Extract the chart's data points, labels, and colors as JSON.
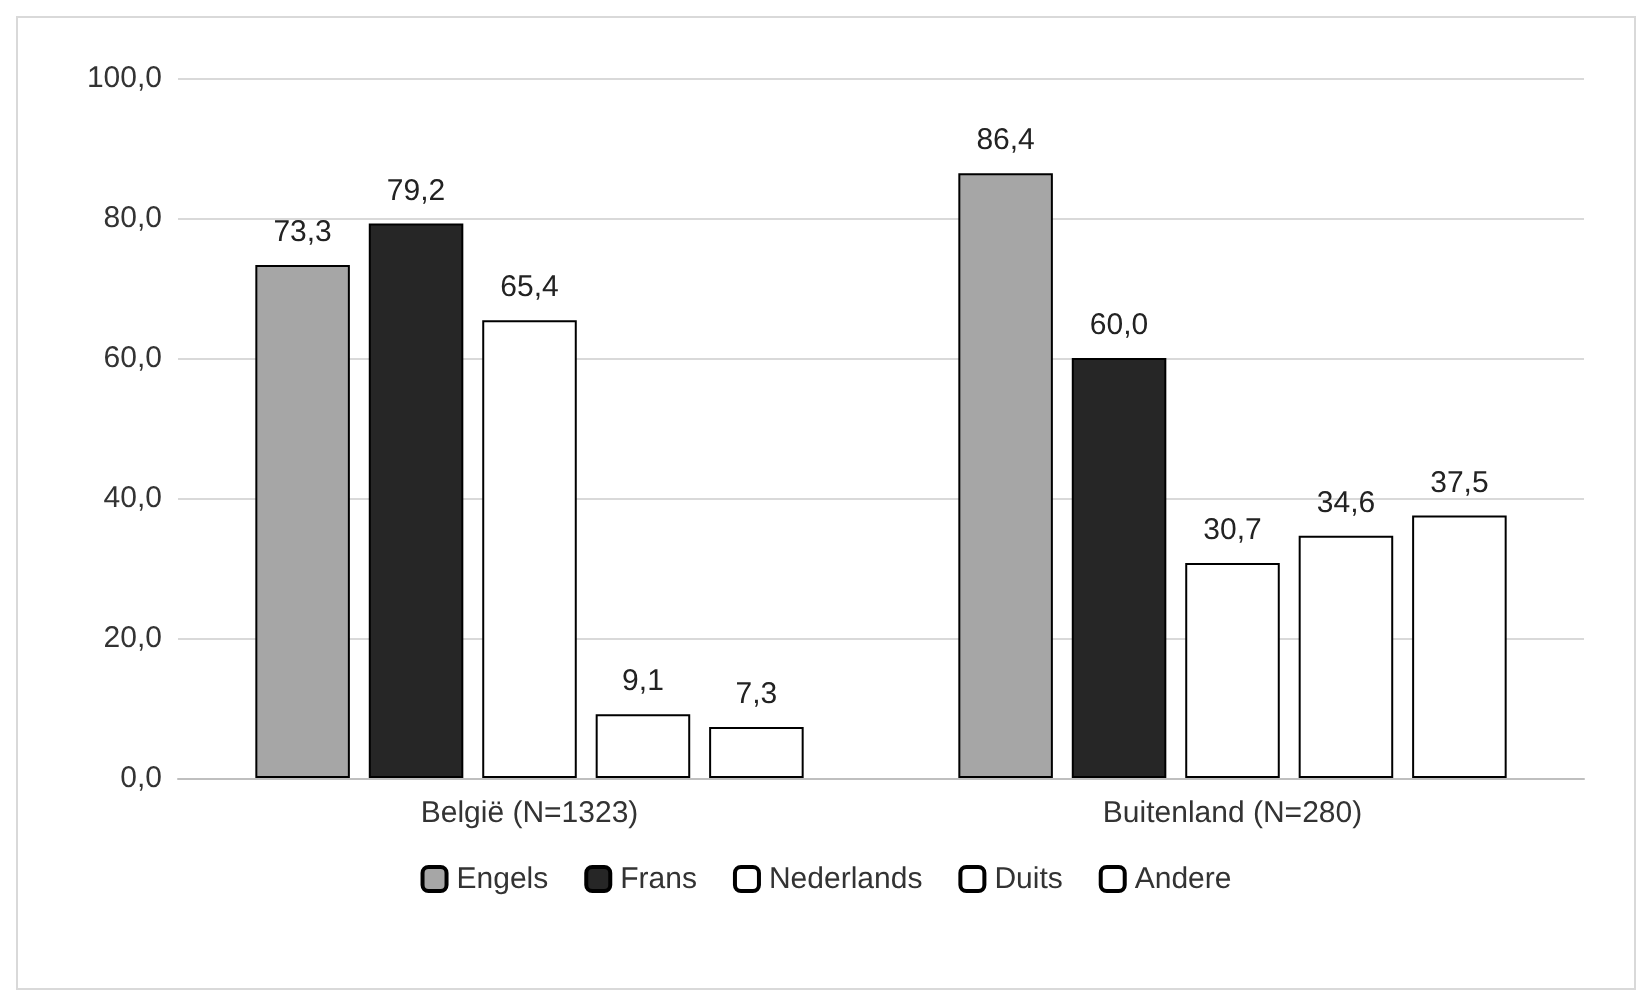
{
  "chart_data": {
    "type": "bar",
    "categories": [
      "België (N=1323)",
      "Buitenland (N=280)"
    ],
    "series": [
      {
        "name": "Engels",
        "color": "#a6a6a6",
        "values": [
          73.3,
          86.4
        ],
        "value_labels": [
          "73,3",
          "86,4"
        ]
      },
      {
        "name": "Frans",
        "color": "#262626",
        "values": [
          79.2,
          60.0
        ],
        "value_labels": [
          "79,2",
          "60,0"
        ]
      },
      {
        "name": "Nederlands",
        "color": "#ffffff",
        "values": [
          65.4,
          30.7
        ],
        "value_labels": [
          "65,4",
          "30,7"
        ]
      },
      {
        "name": "Duits",
        "color": "#ffffff",
        "values": [
          9.1,
          34.6
        ],
        "value_labels": [
          "9,1",
          "34,6"
        ]
      },
      {
        "name": "Andere",
        "color": "#ffffff",
        "values": [
          7.3,
          37.5
        ],
        "value_labels": [
          "7,3",
          "37,5"
        ]
      }
    ],
    "ylim": [
      0,
      100
    ],
    "yticks": [
      {
        "value": 0,
        "label": "0,0"
      },
      {
        "value": 20,
        "label": "20,0"
      },
      {
        "value": 40,
        "label": "40,0"
      },
      {
        "value": 60,
        "label": "60,0"
      },
      {
        "value": 80,
        "label": "80,0"
      },
      {
        "value": 100,
        "label": "100,0"
      }
    ],
    "grid": "y",
    "legend": "bottom"
  }
}
